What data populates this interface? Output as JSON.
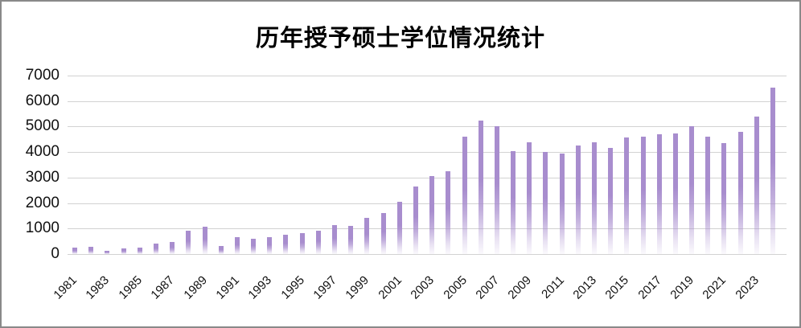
{
  "title": "历年授予硕士学位情况统计",
  "chart_data": {
    "type": "bar",
    "title": "历年授予硕士学位情况统计",
    "xlabel": "",
    "ylabel": "",
    "ylim": [
      0,
      7000
    ],
    "ytick_interval": 1000,
    "ytick_labels": [
      "0",
      "1000",
      "2000",
      "3000",
      "4000",
      "5000",
      "6000",
      "7000"
    ],
    "grid": true,
    "legend": "none",
    "categories": [
      1981,
      1982,
      1983,
      1984,
      1985,
      1986,
      1987,
      1988,
      1989,
      1990,
      1991,
      1992,
      1993,
      1994,
      1995,
      1996,
      1997,
      1998,
      1999,
      2000,
      2001,
      2002,
      2003,
      2004,
      2005,
      2006,
      2007,
      2008,
      2009,
      2010,
      2011,
      2012,
      2013,
      2014,
      2015,
      2016,
      2017,
      2018,
      2019,
      2020,
      2021,
      2022,
      2023,
      2024
    ],
    "values": [
      260,
      280,
      120,
      220,
      240,
      400,
      480,
      930,
      1080,
      310,
      660,
      610,
      660,
      750,
      810,
      910,
      1140,
      1120,
      1420,
      1620,
      2050,
      2650,
      3050,
      3250,
      4600,
      5250,
      5000,
      4050,
      4400,
      4000,
      3950,
      4250,
      4400,
      4150,
      4570,
      4600,
      4690,
      4720,
      5000,
      4600,
      4350,
      4800,
      5400,
      6520
    ],
    "x_tick_labels": [
      "1981",
      "1983",
      "1985",
      "1987",
      "1989",
      "1991",
      "1993",
      "1995",
      "1997",
      "1999",
      "2001",
      "2003",
      "2005",
      "2007",
      "2009",
      "2011",
      "2013",
      "2015",
      "2017",
      "2019",
      "2021",
      "2023"
    ],
    "colors": {
      "bar": "#A88DCE",
      "bar_fade_style": "solid top fading to near-white at bar bottom",
      "gridline": "#D2D2D2",
      "frame_border": "#898989",
      "text": "#111111",
      "background": "#FFFFFF"
    }
  }
}
